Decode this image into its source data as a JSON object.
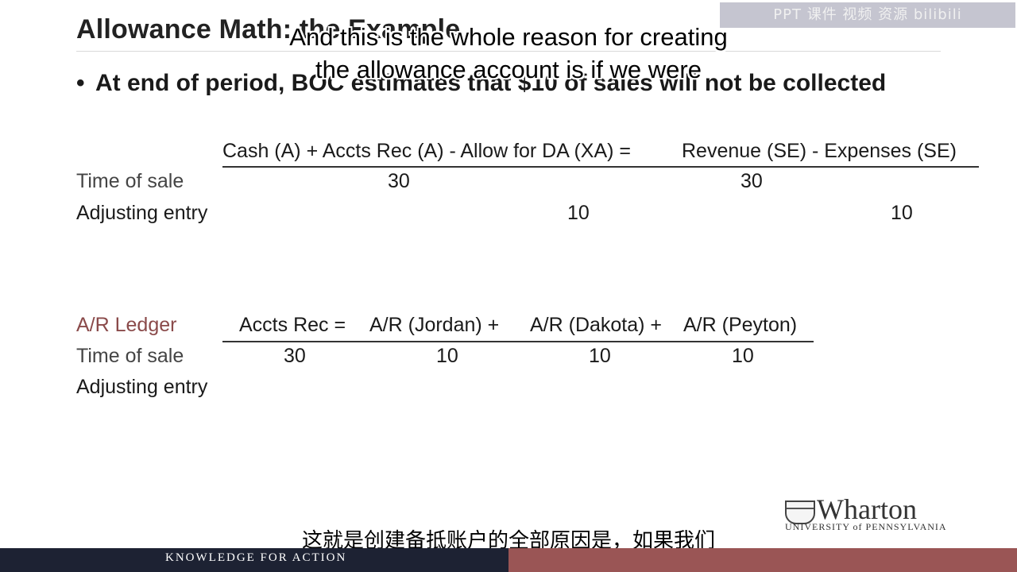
{
  "slide": {
    "title": "Allowance Math: the Example",
    "bullet": "At end of period, BOC estimates that $10 of sales will not be collected"
  },
  "watermark": "PPT 课件 视频 资源 bilibili",
  "equation": {
    "header": "Cash (A) + Accts Rec (A) - Allow for DA (XA) =",
    "header_right": "Revenue (SE) - Expenses (SE)",
    "rows": [
      {
        "label": "Time of sale",
        "accts_rec": "30",
        "revenue": "30"
      },
      {
        "label": "Adjusting entry",
        "allow": "10",
        "expenses": "10"
      }
    ]
  },
  "ledger": {
    "label": "A/R Ledger",
    "headers": [
      "Accts Rec =",
      "A/R (Jordan) +",
      "A/R (Dakota) +",
      "A/R (Peyton)"
    ],
    "rows": [
      {
        "label": "Time of sale",
        "values": [
          "30",
          "10",
          "10",
          "10"
        ]
      },
      {
        "label": "Adjusting entry",
        "values": []
      }
    ]
  },
  "subtitles": {
    "line1": "And this is the whole reason for creating",
    "line2": "the allowance account is if we were",
    "chinese": "这就是创建备抵账户的全部原因是，如果我们"
  },
  "logo": {
    "name": "Wharton",
    "sub": "UNIVERSITY of PENNSYLVANIA"
  },
  "footer": {
    "text": "KNOWLEDGE FOR ACTION"
  }
}
